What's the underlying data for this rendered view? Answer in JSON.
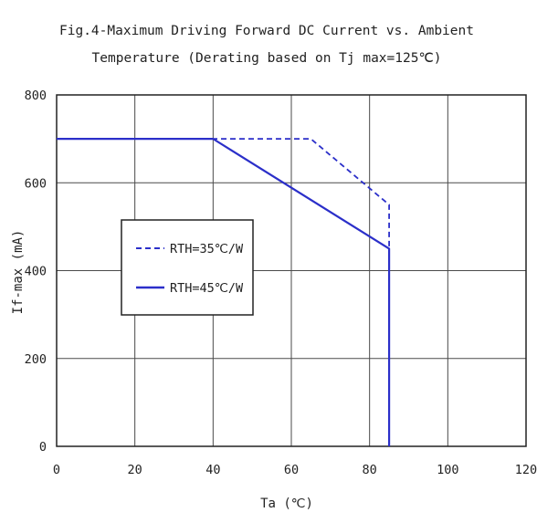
{
  "chart_data": {
    "type": "line",
    "title": [
      "Fig.4-Maximum Driving Forward DC Current vs. Ambient",
      "Temperature (Derating based on Tj max=125℃)"
    ],
    "xlabel": "Ta (℃)",
    "ylabel": "If-max (mA)",
    "xlim": [
      0,
      120
    ],
    "ylim": [
      0,
      800
    ],
    "xticks": [
      0,
      20,
      40,
      60,
      80,
      100,
      120
    ],
    "yticks": [
      0,
      200,
      400,
      600,
      800
    ],
    "grid": true,
    "legend_position": "center-left",
    "series": [
      {
        "name": "RTH=35℃/W",
        "style": "dashed",
        "color": "#2b2fc9",
        "x": [
          0,
          65,
          85,
          85
        ],
        "y": [
          700,
          700,
          550,
          0
        ]
      },
      {
        "name": "RTH=45℃/W",
        "style": "solid",
        "color": "#2b2fc9",
        "x": [
          0,
          40,
          85,
          85
        ],
        "y": [
          700,
          700,
          450,
          0
        ]
      }
    ]
  }
}
